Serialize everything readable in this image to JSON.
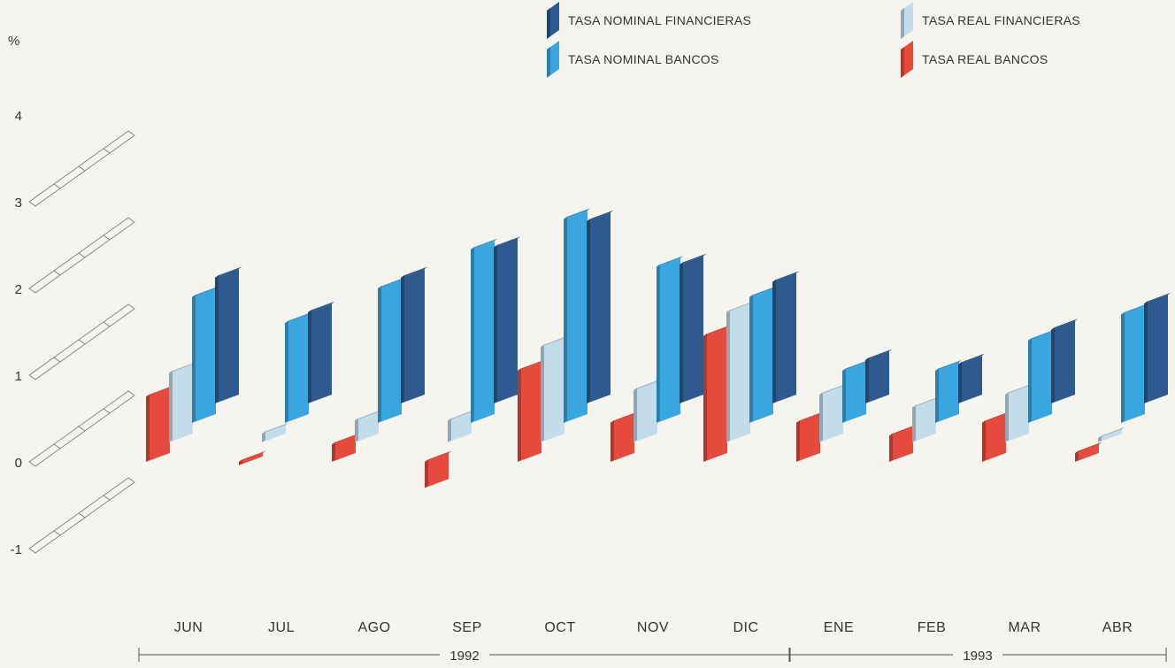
{
  "chart_data": {
    "type": "bar",
    "ylabel": "%",
    "ylim": [
      -1,
      4
    ],
    "yticks": [
      -1,
      0,
      1,
      2,
      3,
      4
    ],
    "categories": [
      "JUN",
      "JUL",
      "AGO",
      "SEP",
      "OCT",
      "NOV",
      "DIC",
      "ENE",
      "FEB",
      "MAR",
      "ABR"
    ],
    "year_groups": [
      {
        "label": "1992",
        "first": 0,
        "last": 6
      },
      {
        "label": "1993",
        "first": 7,
        "last": 10
      }
    ],
    "legend_position": "top-right",
    "series": [
      {
        "name": "TASA REAL BANCOS",
        "color": "#e64a3c",
        "values": [
          0.75,
          -0.04,
          0.2,
          -0.3,
          1.05,
          0.45,
          1.45,
          0.45,
          0.3,
          0.45,
          0.1
        ]
      },
      {
        "name": "TASA REAL FINANCIERAS",
        "color": "#c3dcea",
        "values": [
          0.8,
          0.1,
          0.25,
          0.25,
          1.1,
          0.6,
          1.5,
          0.55,
          0.4,
          0.55,
          0.05
        ]
      },
      {
        "name": "TASA NOMINAL BANCOS",
        "color": "#3aa6df",
        "values": [
          1.45,
          1.15,
          1.55,
          2.0,
          2.35,
          1.8,
          1.45,
          0.6,
          0.6,
          0.95,
          1.25
        ]
      },
      {
        "name": "TASA NOMINAL FINANCIERAS",
        "color": "#2f5a8f",
        "values": [
          1.45,
          1.05,
          1.45,
          1.8,
          2.1,
          1.6,
          1.4,
          0.5,
          0.45,
          0.85,
          1.15
        ]
      }
    ],
    "legend_order": [
      3,
      1,
      2,
      0
    ]
  }
}
